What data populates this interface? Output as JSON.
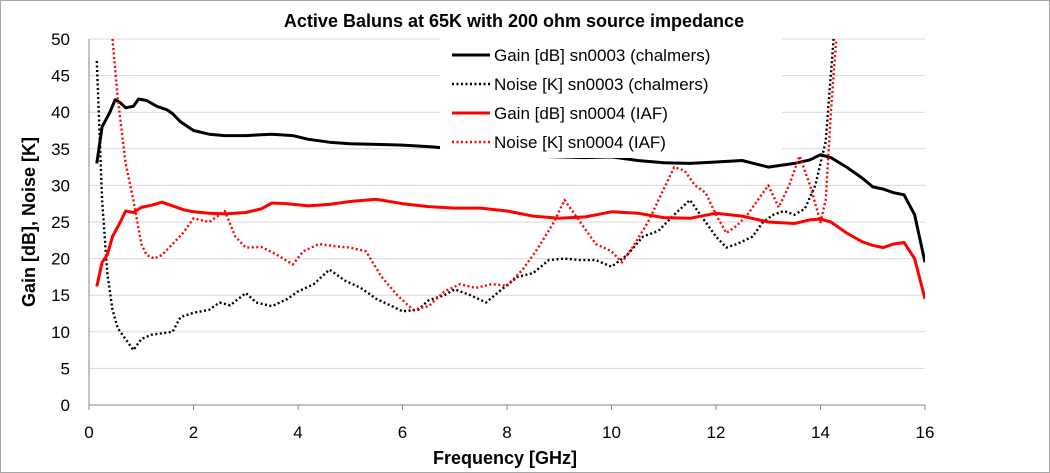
{
  "chart_data": {
    "type": "line",
    "title": "Active Baluns at 65K with 200 ohm source impedance",
    "xlabel": "Frequency [GHz]",
    "ylabel": "Gain [dB], Noise [K]",
    "xlim": [
      0,
      16
    ],
    "ylim": [
      0,
      50
    ],
    "x_ticks": [
      "0",
      "2",
      "4",
      "6",
      "8",
      "10",
      "12",
      "14",
      "16"
    ],
    "y_ticks": [
      "0",
      "5",
      "10",
      "15",
      "20",
      "25",
      "30",
      "35",
      "40",
      "45",
      "50"
    ],
    "grid": "horizontal",
    "legend_position": "top-center",
    "series": [
      {
        "name": "Gain [dB] sn0003 (chalmers)",
        "color": "#000000",
        "style": "solid",
        "points": [
          [
            0.15,
            33
          ],
          [
            0.25,
            38
          ],
          [
            0.4,
            40
          ],
          [
            0.5,
            41.7
          ],
          [
            0.6,
            41.3
          ],
          [
            0.7,
            40.6
          ],
          [
            0.85,
            40.8
          ],
          [
            0.95,
            41.8
          ],
          [
            1.1,
            41.6
          ],
          [
            1.3,
            40.8
          ],
          [
            1.5,
            40.3
          ],
          [
            1.6,
            39.8
          ],
          [
            1.75,
            38.7
          ],
          [
            2.0,
            37.5
          ],
          [
            2.3,
            37
          ],
          [
            2.6,
            36.8
          ],
          [
            3.0,
            36.8
          ],
          [
            3.5,
            37
          ],
          [
            3.9,
            36.8
          ],
          [
            4.2,
            36.3
          ],
          [
            4.6,
            35.9
          ],
          [
            5.0,
            35.7
          ],
          [
            5.5,
            35.6
          ],
          [
            6.0,
            35.5
          ],
          [
            6.5,
            35.3
          ],
          [
            7.0,
            35.0
          ],
          [
            7.5,
            34.7
          ],
          [
            8.0,
            34.3
          ],
          [
            8.5,
            34.0
          ],
          [
            9.0,
            33.9
          ],
          [
            9.5,
            33.8
          ],
          [
            10.0,
            33.9
          ],
          [
            10.5,
            33.4
          ],
          [
            11.0,
            33.1
          ],
          [
            11.5,
            33.0
          ],
          [
            12.0,
            33.2
          ],
          [
            12.5,
            33.4
          ],
          [
            13.0,
            32.5
          ],
          [
            13.5,
            33
          ],
          [
            13.8,
            33.5
          ],
          [
            14.0,
            34.2
          ],
          [
            14.2,
            33.8
          ],
          [
            14.5,
            32.5
          ],
          [
            14.8,
            31
          ],
          [
            15.0,
            29.8
          ],
          [
            15.2,
            29.5
          ],
          [
            15.4,
            29
          ],
          [
            15.6,
            28.7
          ],
          [
            15.8,
            26
          ],
          [
            16.0,
            19.5
          ]
        ]
      },
      {
        "name": "Noise [K] sn0003 (chalmers)",
        "color": "#000000",
        "style": "dotted",
        "points": [
          [
            0.15,
            47
          ],
          [
            0.25,
            28
          ],
          [
            0.35,
            18
          ],
          [
            0.45,
            13
          ],
          [
            0.55,
            10.5
          ],
          [
            0.7,
            9
          ],
          [
            0.85,
            7.5
          ],
          [
            1.0,
            9
          ],
          [
            1.2,
            9.6
          ],
          [
            1.4,
            9.8
          ],
          [
            1.6,
            10
          ],
          [
            1.75,
            12
          ],
          [
            2.0,
            12.6
          ],
          [
            2.3,
            13
          ],
          [
            2.5,
            14
          ],
          [
            2.7,
            13.6
          ],
          [
            3.0,
            15.3
          ],
          [
            3.2,
            14
          ],
          [
            3.5,
            13.5
          ],
          [
            3.8,
            14.5
          ],
          [
            4.0,
            15.5
          ],
          [
            4.3,
            16.5
          ],
          [
            4.6,
            18.5
          ],
          [
            4.9,
            17
          ],
          [
            5.2,
            16
          ],
          [
            5.5,
            14.5
          ],
          [
            5.8,
            13.5
          ],
          [
            6.0,
            12.8
          ],
          [
            6.3,
            13
          ],
          [
            6.5,
            14.3
          ],
          [
            6.8,
            15
          ],
          [
            7.0,
            15.8
          ],
          [
            7.3,
            15
          ],
          [
            7.6,
            14
          ],
          [
            7.9,
            15.8
          ],
          [
            8.2,
            17.5
          ],
          [
            8.5,
            18
          ],
          [
            8.8,
            19.8
          ],
          [
            9.1,
            20
          ],
          [
            9.4,
            19.8
          ],
          [
            9.7,
            19.8
          ],
          [
            10.0,
            18.9
          ],
          [
            10.3,
            20.5
          ],
          [
            10.6,
            23
          ],
          [
            10.9,
            23.8
          ],
          [
            11.2,
            26
          ],
          [
            11.5,
            28
          ],
          [
            11.7,
            26
          ],
          [
            12.0,
            23
          ],
          [
            12.2,
            21.5
          ],
          [
            12.4,
            22
          ],
          [
            12.7,
            23
          ],
          [
            12.9,
            25
          ],
          [
            13.1,
            26
          ],
          [
            13.3,
            26.5
          ],
          [
            13.5,
            26
          ],
          [
            13.7,
            26.8
          ],
          [
            13.9,
            30
          ],
          [
            14.1,
            36
          ],
          [
            14.25,
            50
          ]
        ]
      },
      {
        "name": "Gain [dB] sn0004 (IAF)",
        "color": "#ff0000",
        "style": "solid",
        "points": [
          [
            0.15,
            16.2
          ],
          [
            0.25,
            19.5
          ],
          [
            0.35,
            20.5
          ],
          [
            0.45,
            23
          ],
          [
            0.6,
            25
          ],
          [
            0.7,
            26.5
          ],
          [
            0.85,
            26.3
          ],
          [
            1.0,
            27
          ],
          [
            1.2,
            27.3
          ],
          [
            1.4,
            27.7
          ],
          [
            1.6,
            27.2
          ],
          [
            1.8,
            26.7
          ],
          [
            2.0,
            26.4
          ],
          [
            2.3,
            26.2
          ],
          [
            2.6,
            26.1
          ],
          [
            3.0,
            26.3
          ],
          [
            3.3,
            26.8
          ],
          [
            3.5,
            27.6
          ],
          [
            3.8,
            27.5
          ],
          [
            4.2,
            27.2
          ],
          [
            4.6,
            27.4
          ],
          [
            5.0,
            27.8
          ],
          [
            5.5,
            28.1
          ],
          [
            6.0,
            27.5
          ],
          [
            6.5,
            27.1
          ],
          [
            7.0,
            26.9
          ],
          [
            7.5,
            26.9
          ],
          [
            8.0,
            26.5
          ],
          [
            8.5,
            25.8
          ],
          [
            9.0,
            25.5
          ],
          [
            9.5,
            25.7
          ],
          [
            10.0,
            26.4
          ],
          [
            10.5,
            26.2
          ],
          [
            11.0,
            25.6
          ],
          [
            11.5,
            25.5
          ],
          [
            12.0,
            26.2
          ],
          [
            12.5,
            25.8
          ],
          [
            13.0,
            25.0
          ],
          [
            13.5,
            24.8
          ],
          [
            13.8,
            25.3
          ],
          [
            14.0,
            25.4
          ],
          [
            14.2,
            25
          ],
          [
            14.5,
            23.5
          ],
          [
            14.8,
            22.3
          ],
          [
            15.0,
            21.8
          ],
          [
            15.2,
            21.5
          ],
          [
            15.4,
            22
          ],
          [
            15.6,
            22.2
          ],
          [
            15.8,
            20
          ],
          [
            16.0,
            14.5
          ]
        ]
      },
      {
        "name": "Noise [K] sn0004 (IAF)",
        "color": "#ff0000",
        "style": "dotted",
        "points": [
          [
            0.45,
            50
          ],
          [
            0.55,
            42
          ],
          [
            0.7,
            33
          ],
          [
            0.85,
            28
          ],
          [
            1.0,
            22
          ],
          [
            1.1,
            20.5
          ],
          [
            1.25,
            20
          ],
          [
            1.4,
            20.5
          ],
          [
            1.6,
            22
          ],
          [
            1.8,
            23.5
          ],
          [
            2.0,
            25.5
          ],
          [
            2.3,
            25
          ],
          [
            2.6,
            26.5
          ],
          [
            2.8,
            23
          ],
          [
            3.0,
            21.5
          ],
          [
            3.3,
            21.6
          ],
          [
            3.6,
            20.5
          ],
          [
            3.9,
            19.2
          ],
          [
            4.1,
            21
          ],
          [
            4.4,
            22
          ],
          [
            4.7,
            21.7
          ],
          [
            5.0,
            21.5
          ],
          [
            5.3,
            21
          ],
          [
            5.6,
            17.5
          ],
          [
            5.9,
            15
          ],
          [
            6.2,
            13
          ],
          [
            6.5,
            13.5
          ],
          [
            6.8,
            15.5
          ],
          [
            7.1,
            16.5
          ],
          [
            7.4,
            16
          ],
          [
            7.7,
            16.5
          ],
          [
            8.0,
            16.3
          ],
          [
            8.3,
            18.5
          ],
          [
            8.6,
            21.5
          ],
          [
            8.9,
            25
          ],
          [
            9.1,
            28
          ],
          [
            9.4,
            25
          ],
          [
            9.7,
            22
          ],
          [
            10.0,
            21
          ],
          [
            10.2,
            19.5
          ],
          [
            10.4,
            21.5
          ],
          [
            10.7,
            25
          ],
          [
            10.9,
            28
          ],
          [
            11.2,
            32.5
          ],
          [
            11.4,
            32
          ],
          [
            11.6,
            30
          ],
          [
            11.8,
            29
          ],
          [
            12.0,
            26
          ],
          [
            12.2,
            23.5
          ],
          [
            12.4,
            24.5
          ],
          [
            12.6,
            26
          ],
          [
            12.8,
            28
          ],
          [
            13.0,
            30
          ],
          [
            13.2,
            27
          ],
          [
            13.4,
            30
          ],
          [
            13.6,
            34
          ],
          [
            13.8,
            30
          ],
          [
            14.0,
            25
          ],
          [
            14.1,
            28
          ],
          [
            14.2,
            40
          ],
          [
            14.3,
            50
          ]
        ]
      }
    ]
  }
}
